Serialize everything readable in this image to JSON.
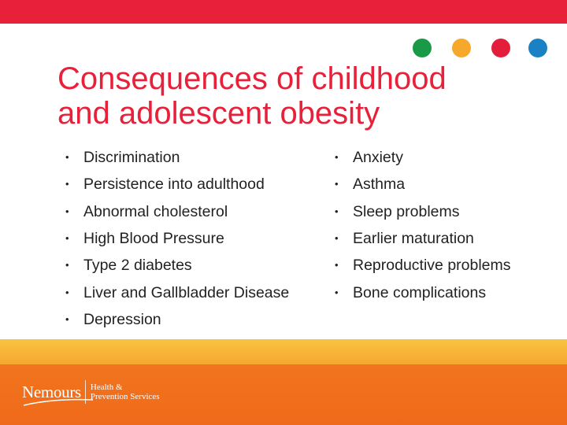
{
  "colors": {
    "accent_red": "#e8203a",
    "dot_green": "#1a9a46",
    "dot_yellow": "#f6a82a",
    "dot_red": "#e31e3b",
    "dot_blue": "#1a82c4",
    "footer_orange": "#f2741e",
    "band_yellow": "#f9c43f"
  },
  "title": {
    "line1": "Consequences of childhood",
    "line2": "and adolescent obesity"
  },
  "left_items": [
    "Discrimination",
    "Persistence into adulthood",
    "Abnormal cholesterol",
    "High Blood Pressure",
    "Type 2 diabetes",
    "Liver and Gallbladder Disease",
    "Depression"
  ],
  "right_items": [
    "Anxiety",
    "Asthma",
    "Sleep problems",
    "Earlier maturation",
    "Reproductive problems",
    "Bone complications"
  ],
  "footer": {
    "logo_name": "Nemours",
    "logo_line1": "Health &",
    "logo_line2": "Prevention Services"
  }
}
